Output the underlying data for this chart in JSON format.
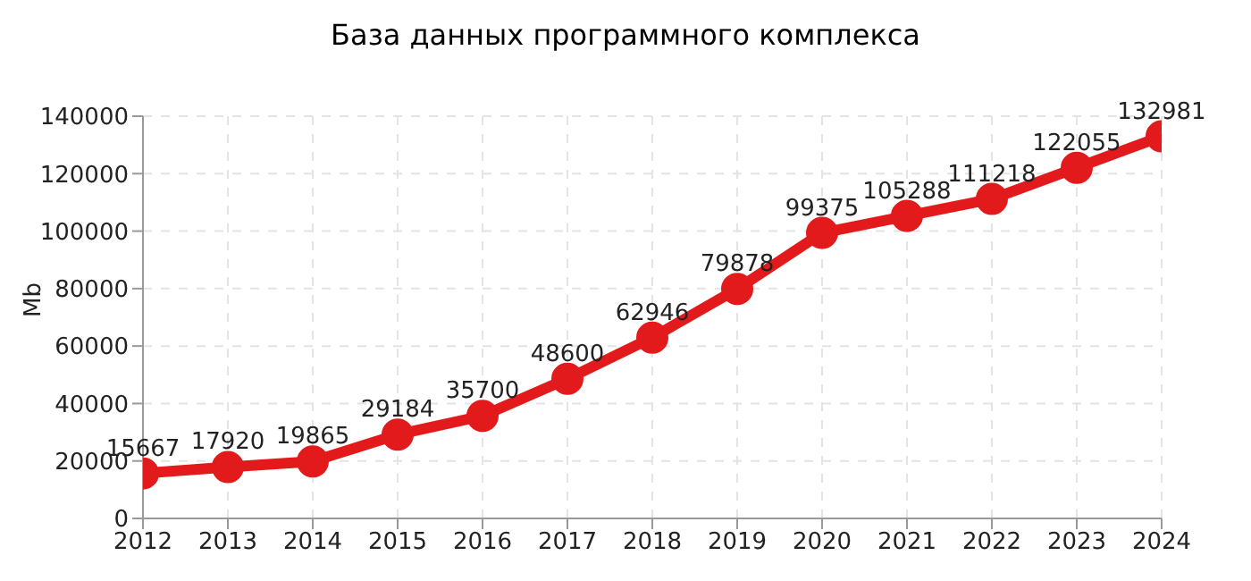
{
  "chart_data": {
    "type": "line",
    "title": "База данных программного комплекса",
    "ylabel": "Mb",
    "categories": [
      "2012",
      "2013",
      "2014",
      "2015",
      "2016",
      "2017",
      "2018",
      "2019",
      "2020",
      "2021",
      "2022",
      "2023",
      "2024"
    ],
    "series": [
      {
        "color": "#e31a1c",
        "values": [
          15667,
          17920,
          19865,
          29184,
          35700,
          48600,
          62946,
          79878,
          99375,
          105288,
          111218,
          122055,
          132981
        ]
      }
    ],
    "ylim": [
      0,
      140000
    ],
    "yticks": [
      0,
      20000,
      40000,
      60000,
      80000,
      100000,
      120000,
      140000
    ],
    "grid": true,
    "legend": false,
    "marker": "circle",
    "line_style": "solid",
    "data_labels": true
  }
}
